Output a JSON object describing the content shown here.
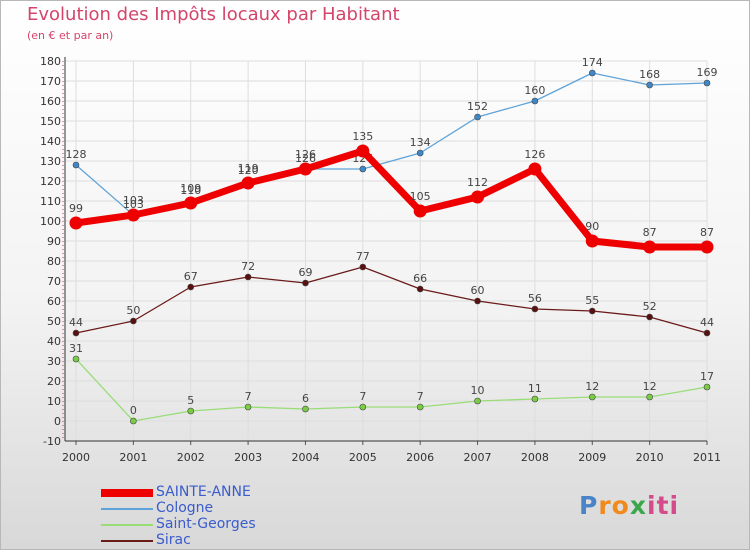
{
  "chart_data": {
    "type": "line",
    "title": "Evolution des Impôts locaux par Habitant",
    "subtitle": "(en € et par an)",
    "xlabel": "",
    "ylabel": "",
    "categories": [
      "2000",
      "2001",
      "2002",
      "2003",
      "2004",
      "2005",
      "2006",
      "2007",
      "2008",
      "2009",
      "2010",
      "2011"
    ],
    "ylim": [
      -10,
      180
    ],
    "ytick_step": 10,
    "grid": true,
    "legend_position": "bottom-left",
    "series": [
      {
        "name": "Sirac",
        "color": "#6b1a1a",
        "marker_color": "#5a1010",
        "emphasis": false,
        "values": [
          44,
          50,
          67,
          72,
          69,
          77,
          66,
          60,
          56,
          55,
          52,
          44
        ],
        "labels": [
          "44",
          "50",
          "67",
          "72",
          "69",
          "77",
          "66",
          "60",
          "56",
          "55",
          "52",
          "44"
        ]
      },
      {
        "name": "Saint-Georges",
        "color": "#99dd77",
        "marker_color": "#7acc44",
        "emphasis": false,
        "values": [
          31,
          0,
          5,
          7,
          6,
          7,
          7,
          10,
          11,
          12,
          12,
          17
        ],
        "labels": [
          "31",
          "0",
          "5",
          "7",
          "6",
          "7",
          "7",
          "10",
          "11",
          "12",
          "12",
          "17"
        ]
      },
      {
        "name": "Cologne",
        "color": "#5fa3d8",
        "marker_color": "#3f88c8",
        "emphasis": false,
        "values": [
          128,
          103,
          110,
          120,
          126,
          126,
          134,
          152,
          160,
          174,
          168,
          169
        ],
        "labels": [
          "128",
          "103",
          "110",
          "120",
          "126",
          "126",
          "134",
          "152",
          "160",
          "174",
          "168",
          "169"
        ]
      },
      {
        "name": "SAINTE-ANNE",
        "color": "#ee0000",
        "marker_color": "#ee0000",
        "emphasis": true,
        "values": [
          99,
          103,
          109,
          119,
          126,
          135,
          105,
          112,
          126,
          90,
          87,
          87
        ],
        "labels": [
          "99",
          "103",
          "109",
          "119",
          "126",
          "135",
          "105",
          "112",
          "126",
          "90",
          "87",
          "87"
        ]
      }
    ],
    "legend_order": [
      "SAINTE-ANNE",
      "Cologne",
      "Saint-Georges",
      "Sirac"
    ]
  },
  "logo": {
    "letters": [
      "P",
      "r",
      "o",
      "x",
      "i",
      "t",
      "i"
    ],
    "colors": [
      "#4a84c8",
      "#f08a1c",
      "#f08a1c",
      "#3aa84a",
      "#d44a8a",
      "#d44a8a",
      "#d44a8a"
    ]
  }
}
